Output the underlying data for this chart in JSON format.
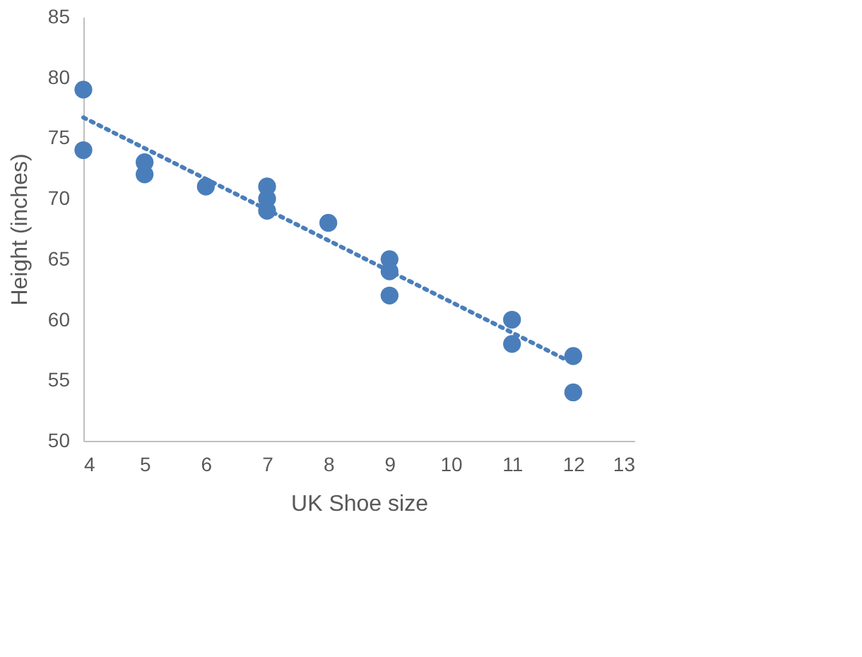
{
  "chart_data": {
    "type": "scatter",
    "xlabel": "UK Shoe size",
    "ylabel": "Height (inches)",
    "xlim": [
      4,
      13
    ],
    "xticks": [
      4,
      5,
      6,
      7,
      8,
      9,
      10,
      11,
      12,
      13
    ],
    "ylim": [
      50,
      85
    ],
    "yticks": [
      50,
      55,
      60,
      65,
      70,
      75,
      80,
      85
    ],
    "grid": false,
    "series": [
      {
        "color": "#4a7ebb",
        "marker": "circle",
        "x": [
          4,
          4,
          5,
          5,
          6,
          7,
          7,
          7,
          8,
          9,
          9,
          9,
          11,
          11,
          12,
          12
        ],
        "values": [
          79,
          74,
          73,
          72,
          71,
          71,
          70,
          69,
          68,
          65,
          64,
          62,
          60,
          58,
          57,
          54
        ]
      },
      {
        "type": "line",
        "color": "#4a7ebb",
        "line_style": "dotted",
        "x": [
          4,
          12
        ],
        "values": [
          76.7,
          56.4
        ]
      }
    ]
  }
}
